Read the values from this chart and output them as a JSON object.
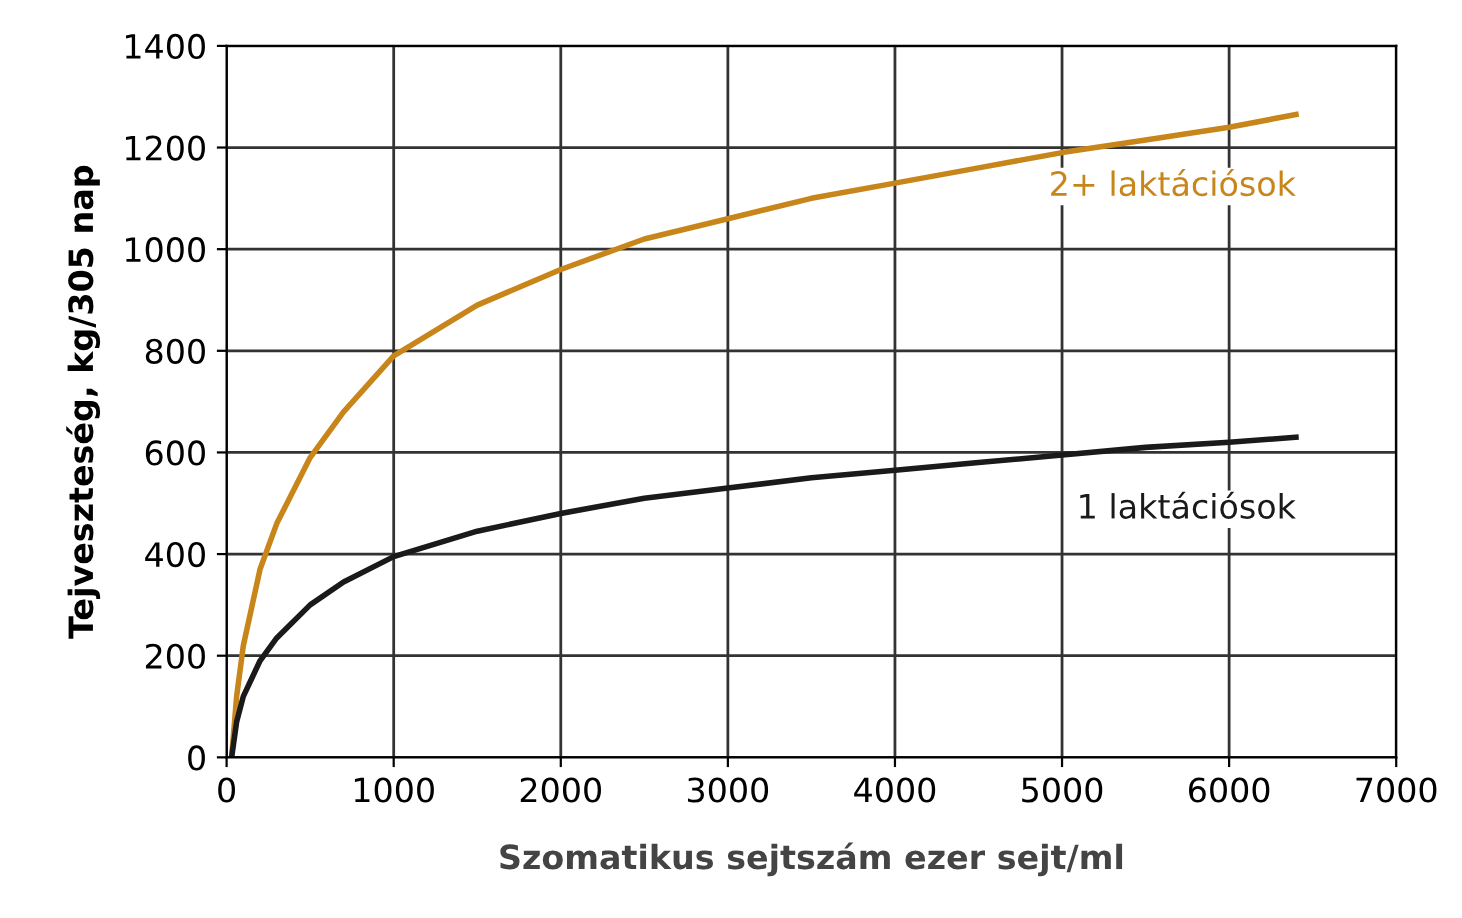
{
  "chart_data": {
    "type": "line",
    "xlabel": "Szomatikus sejtszám ezer sejt/ml",
    "ylabel": "Tejveszteség, kg/305 nap",
    "xlim": [
      0,
      7000
    ],
    "xticks": [
      0,
      1000,
      2000,
      3000,
      4000,
      5000,
      6000,
      7000
    ],
    "ylim": [
      0,
      1400
    ],
    "yticks": [
      0,
      200,
      400,
      600,
      800,
      1000,
      1200,
      1400
    ],
    "grid": true,
    "legend": false,
    "series": [
      {
        "name": "2+ laktációsok",
        "color": "#c8861a",
        "x": [
          30,
          60,
          100,
          200,
          300,
          500,
          700,
          1000,
          1500,
          2000,
          2500,
          3000,
          3500,
          4000,
          4500,
          5000,
          5500,
          6000,
          6400
        ],
        "values": [
          0,
          120,
          220,
          370,
          460,
          590,
          680,
          790,
          890,
          960,
          1020,
          1060,
          1100,
          1130,
          1160,
          1190,
          1215,
          1240,
          1265
        ]
      },
      {
        "name": "1 laktációsok",
        "color": "#1a1a1a",
        "x": [
          30,
          60,
          100,
          200,
          300,
          500,
          700,
          1000,
          1500,
          2000,
          2500,
          3000,
          3500,
          4000,
          4500,
          5000,
          5500,
          6000,
          6400
        ],
        "values": [
          0,
          70,
          120,
          190,
          235,
          300,
          345,
          395,
          445,
          480,
          510,
          530,
          550,
          565,
          580,
          595,
          610,
          620,
          630
        ]
      }
    ]
  }
}
